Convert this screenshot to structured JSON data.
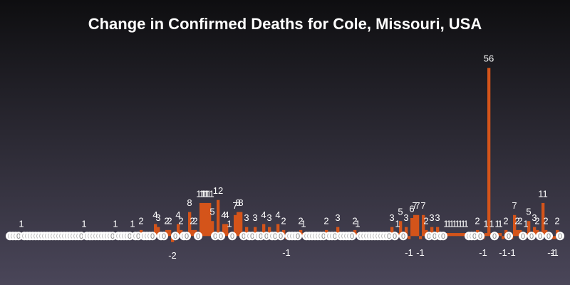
{
  "chart_data": {
    "type": "bar",
    "title": "Change in Confirmed Deaths for Cole, Missouri, USA",
    "color": "#d4541a",
    "ylim": [
      -8,
      62
    ],
    "values": [
      0,
      0,
      0,
      0,
      1,
      0,
      0,
      0,
      0,
      0,
      0,
      0,
      0,
      0,
      0,
      0,
      0,
      0,
      0,
      0,
      0,
      0,
      0,
      0,
      0,
      0,
      1,
      0,
      0,
      0,
      0,
      0,
      0,
      0,
      0,
      0,
      0,
      1,
      0,
      0,
      0,
      0,
      0,
      1,
      0,
      0,
      2,
      0,
      0,
      0,
      0,
      4,
      3,
      0,
      0,
      2,
      2,
      -2,
      0,
      4,
      2,
      0,
      0,
      8,
      2,
      2,
      0,
      11,
      11,
      11,
      11,
      5,
      0,
      12,
      0,
      4,
      4,
      1,
      0,
      7,
      8,
      8,
      0,
      3,
      0,
      0,
      3,
      0,
      0,
      4,
      0,
      3,
      0,
      0,
      4,
      0,
      2,
      -1,
      0,
      0,
      0,
      0,
      2,
      1,
      0,
      0,
      0,
      0,
      0,
      0,
      0,
      2,
      0,
      0,
      0,
      3,
      0,
      0,
      0,
      0,
      0,
      2,
      1,
      0,
      0,
      0,
      0,
      0,
      0,
      0,
      0,
      0,
      0,
      0,
      3,
      0,
      1,
      5,
      0,
      3,
      -1,
      6,
      7,
      7,
      -1,
      7,
      2,
      0,
      3,
      0,
      3,
      0,
      0,
      1,
      1,
      1,
      1,
      1,
      1,
      1,
      1,
      0,
      0,
      0,
      2,
      0,
      -1,
      1,
      56,
      1,
      0,
      1,
      1,
      -1,
      2,
      0,
      -1,
      7,
      2,
      2,
      0,
      1,
      5,
      0,
      3,
      2,
      0,
      11,
      2,
      0,
      -1,
      -1,
      2,
      0
    ]
  }
}
